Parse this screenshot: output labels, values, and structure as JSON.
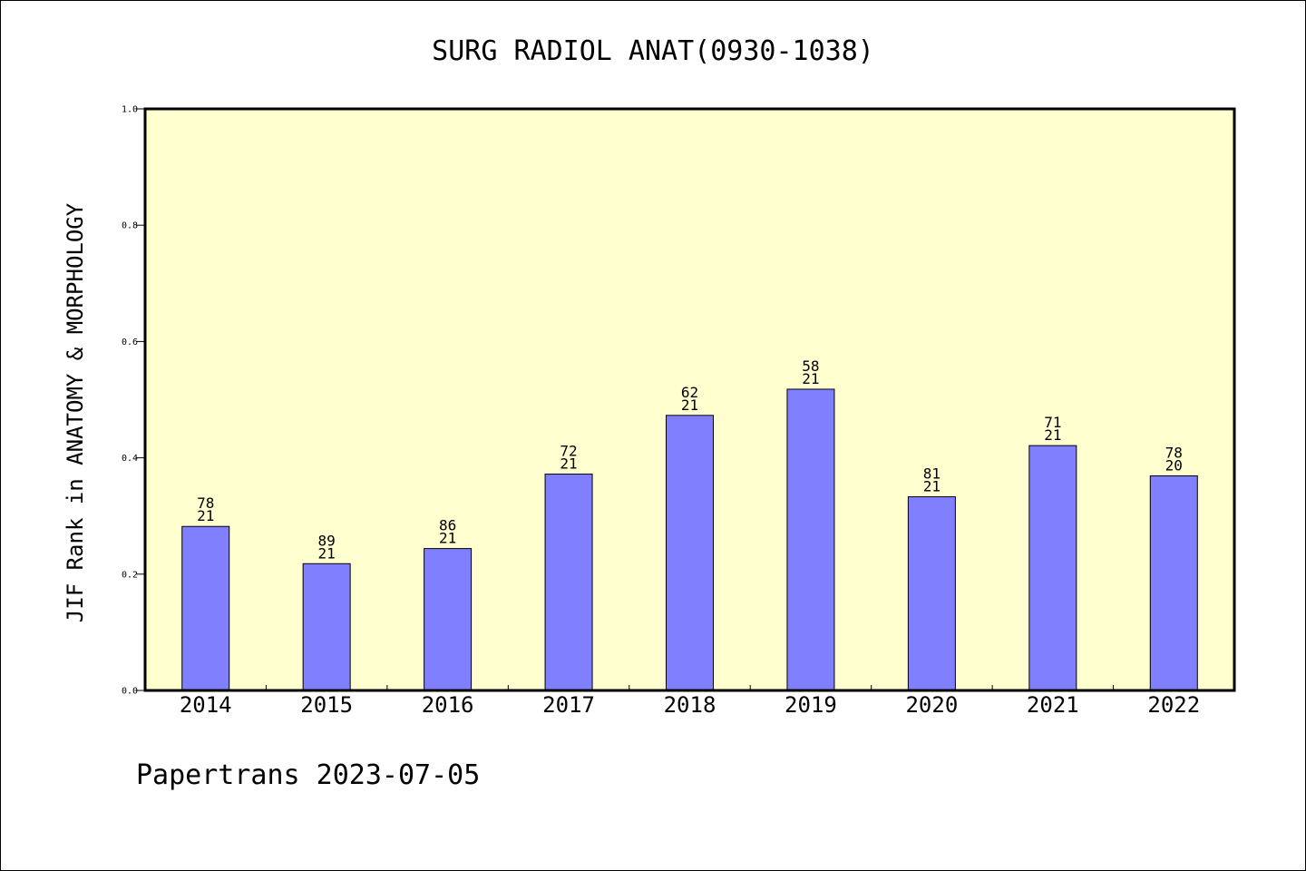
{
  "chart_data": {
    "type": "bar",
    "title": "SURG RADIOL ANAT(0930-1038)",
    "xlabel": "",
    "ylabel": "JIF Rank in ANATOMY & MORPHOLOGY",
    "categories": [
      "2014",
      "2015",
      "2016",
      "2017",
      "2018",
      "2019",
      "2020",
      "2021",
      "2022"
    ],
    "values": [
      0.282,
      0.218,
      0.244,
      0.372,
      0.473,
      0.518,
      0.333,
      0.421,
      0.369
    ],
    "labels": [
      [
        "78",
        "21"
      ],
      [
        "89",
        "21"
      ],
      [
        "86",
        "21"
      ],
      [
        "72",
        "21"
      ],
      [
        "62",
        "21"
      ],
      [
        "58",
        "21"
      ],
      [
        "81",
        "21"
      ],
      [
        "71",
        "21"
      ],
      [
        "78",
        "20"
      ]
    ],
    "ylim": [
      0,
      1.0
    ],
    "yticks": [
      "0.0",
      "0.2",
      "0.4",
      "0.6",
      "0.8",
      "1.0"
    ],
    "grid": false,
    "colors": {
      "bar": "#8080ff",
      "plot_bg": "#ffffd0",
      "frame": "#000000"
    }
  },
  "footer": "Papertrans 2023-07-05"
}
